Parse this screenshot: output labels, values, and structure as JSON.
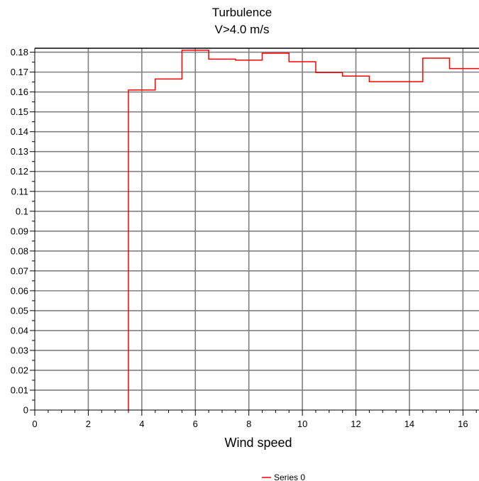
{
  "chart_data": {
    "type": "line",
    "step": true,
    "title": "Turbulence",
    "subtitle": "V>4.0 m/s",
    "xlabel": "Wind speed",
    "ylabel": "",
    "xlim": [
      0,
      16.6
    ],
    "ylim": [
      0,
      0.182
    ],
    "x_major_ticks": [
      "0",
      "2",
      "4",
      "6",
      "8",
      "10",
      "12",
      "14",
      "16"
    ],
    "y_major_ticks": [
      "0",
      "0.01",
      "0.02",
      "0.03",
      "0.04",
      "0.05",
      "0.06",
      "0.07",
      "0.08",
      "0.09",
      "0.1",
      "0.11",
      "0.12",
      "0.13",
      "0.14",
      "0.15",
      "0.16",
      "0.17",
      "0.18"
    ],
    "grid": true,
    "legend_position": "bottom-center",
    "series_color": "#ff0000",
    "grid_color": "#808080",
    "series": [
      {
        "name": "Series 0",
        "x": [
          3.5,
          3.5,
          4.5,
          4.5,
          5.5,
          5.5,
          6.5,
          6.5,
          7.5,
          7.5,
          8.5,
          8.5,
          9.5,
          9.5,
          10.5,
          10.5,
          11.5,
          11.5,
          12.5,
          12.5,
          13.5,
          13.5,
          14.5,
          14.5,
          15.5,
          15.5,
          16.6
        ],
        "y": [
          0,
          0.161,
          0.161,
          0.1665,
          0.1665,
          0.181,
          0.181,
          0.1765,
          0.1765,
          0.176,
          0.176,
          0.1795,
          0.1795,
          0.1752,
          0.1752,
          0.1698,
          0.1698,
          0.168,
          0.168,
          0.1652,
          0.1652,
          0.1652,
          0.1652,
          0.177,
          0.177,
          0.1718,
          0.1718
        ]
      }
    ]
  }
}
